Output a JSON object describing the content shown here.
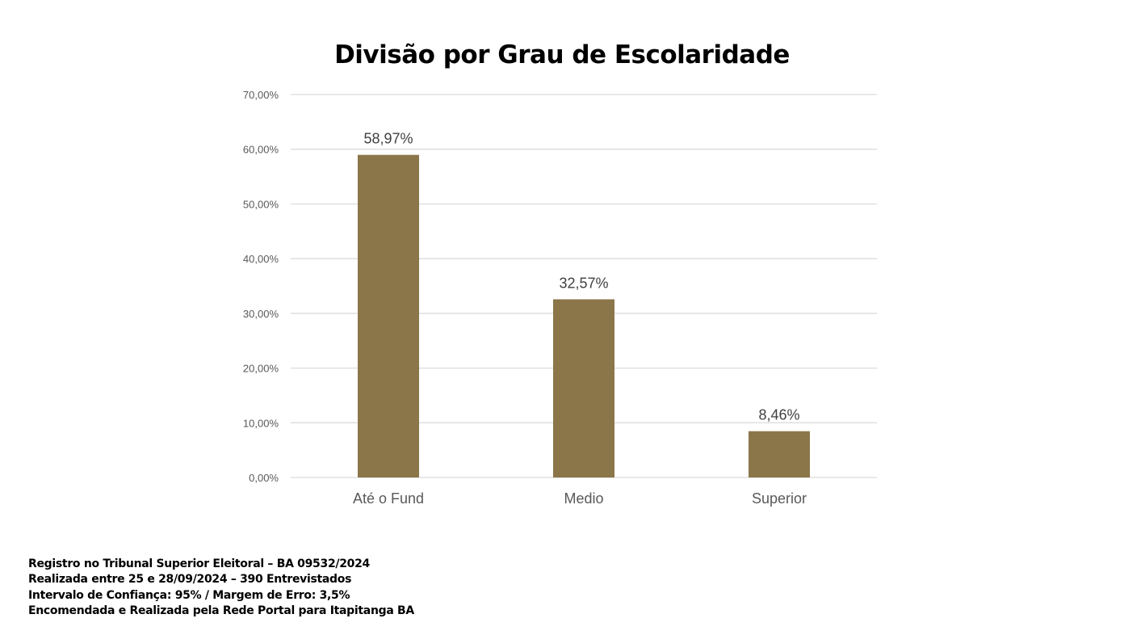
{
  "chart_data": {
    "type": "bar",
    "title": "Divisão por Grau de Escolaridade",
    "xlabel": "",
    "ylabel": "",
    "categories": [
      "Até o Fund",
      "Medio",
      "Superior"
    ],
    "values": [
      58.97,
      32.57,
      8.46
    ],
    "data_labels": [
      "58,97%",
      "32,57%",
      "8,46%"
    ],
    "ylim": [
      0,
      70
    ],
    "yticks": [
      0,
      10,
      20,
      30,
      40,
      50,
      60,
      70
    ],
    "ytick_labels": [
      "0,00%",
      "10,00%",
      "20,00%",
      "30,00%",
      "40,00%",
      "50,00%",
      "60,00%",
      "70,00%"
    ],
    "grid": true,
    "legend": "none",
    "bar_color": "#8B764A"
  },
  "footer": {
    "lines": [
      "Registro no Tribunal Superior Eleitoral – BA 09532/2024",
      "Realizada entre 25 e 28/09/2024 – 390 Entrevistados",
      "Intervalo de Confiança: 95% / Margem de Erro: 3,5%",
      "Encomendada e Realizada pela Rede Portal para Itapitanga BA"
    ]
  }
}
